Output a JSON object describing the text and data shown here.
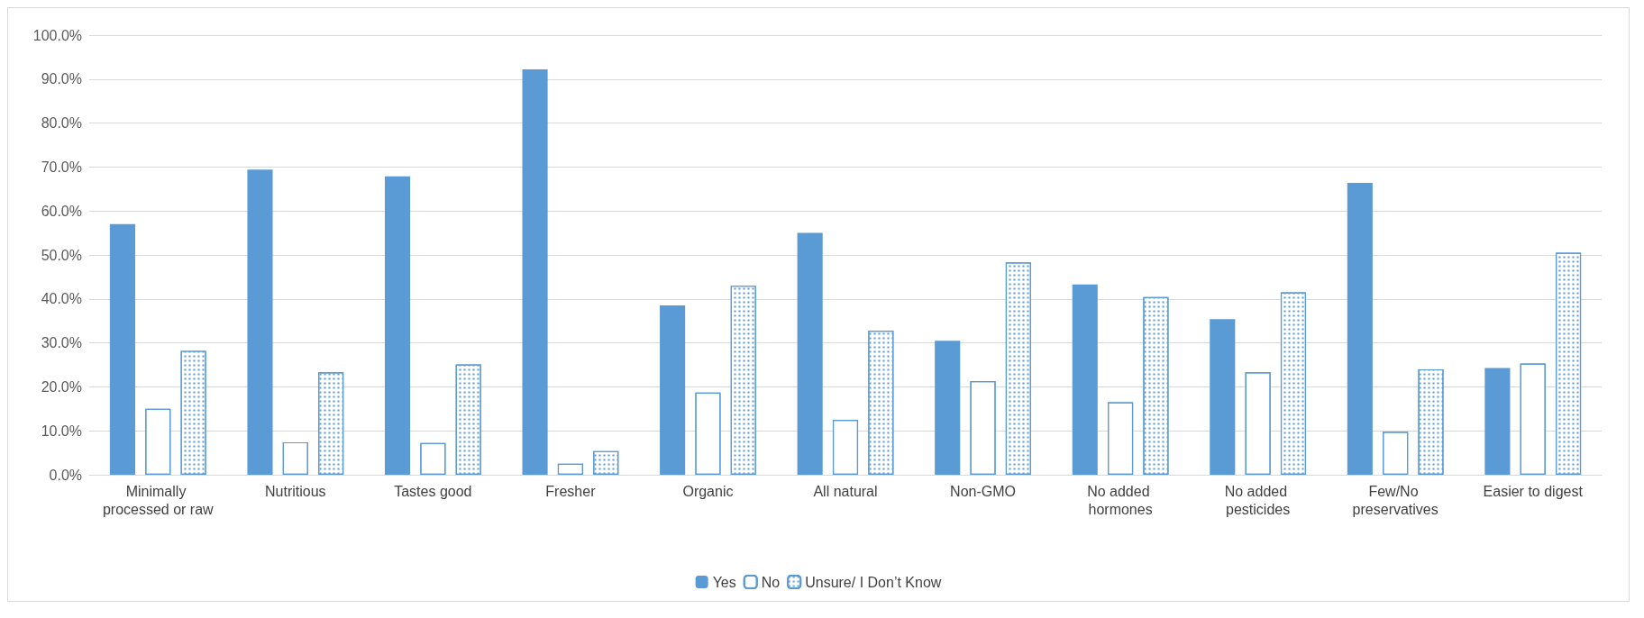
{
  "chart_data": {
    "type": "bar",
    "categories": [
      "Minimally processed or raw",
      "Nutritious",
      "Tastes good",
      "Fresher",
      "Organic",
      "All natural",
      "Non-GMO",
      "No added hormones",
      "No added pesticides",
      "Few/No preservatives",
      "Easier to digest"
    ],
    "series": [
      {
        "name": "Yes",
        "color": "#5b9bd5",
        "values": [
          57.0,
          69.4,
          67.9,
          92.2,
          38.5,
          55.0,
          30.5,
          43.3,
          35.4,
          66.4,
          24.3
        ]
      },
      {
        "name": "No",
        "color": "#5b9bd5",
        "values": [
          15.0,
          7.4,
          7.2,
          2.5,
          18.7,
          12.5,
          21.3,
          16.5,
          23.3,
          9.8,
          25.3
        ]
      },
      {
        "name": "Unsure/ I Don’t Know",
        "color": "#5b9bd5",
        "values": [
          28.2,
          23.3,
          25.1,
          5.4,
          43.0,
          32.8,
          48.3,
          40.4,
          41.5,
          24.0,
          50.5
        ]
      }
    ],
    "ylim": [
      0,
      100
    ],
    "yticks": [
      {
        "value": 0,
        "label": "0.0%"
      },
      {
        "value": 10,
        "label": "10.0%"
      },
      {
        "value": 20,
        "label": "20.0%"
      },
      {
        "value": 30,
        "label": "30.0%"
      },
      {
        "value": 40,
        "label": "40.0%"
      },
      {
        "value": 50,
        "label": "50.0%"
      },
      {
        "value": 60,
        "label": "60.0%"
      },
      {
        "value": 70,
        "label": "70.0%"
      },
      {
        "value": 80,
        "label": "80.0%"
      },
      {
        "value": 90,
        "label": "90.0%"
      },
      {
        "value": 100,
        "label": "100.0%"
      }
    ],
    "grid": "y",
    "legend": "bottom"
  }
}
